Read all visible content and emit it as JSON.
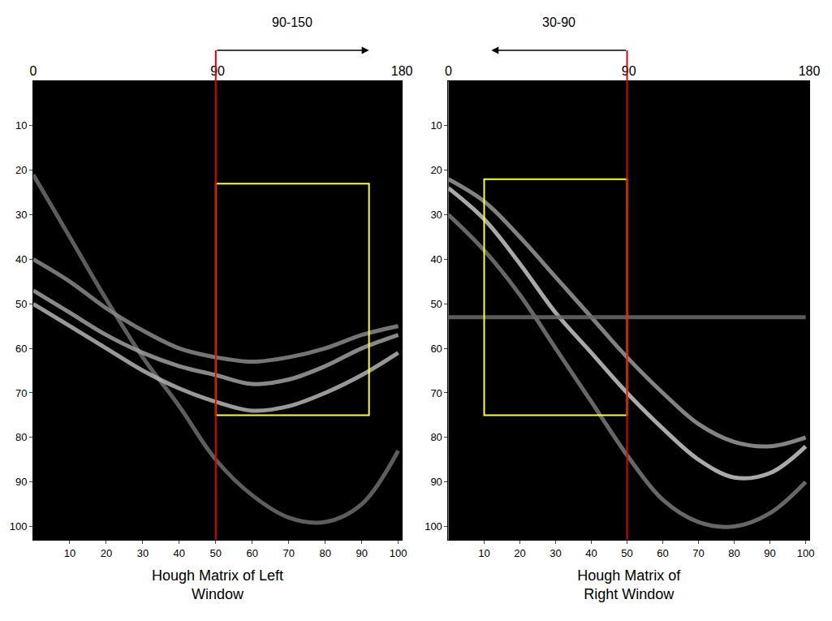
{
  "chart_data": [
    {
      "type": "line",
      "title": "Hough Matrix of Left Window",
      "x": [
        0,
        10,
        20,
        30,
        40,
        50,
        60,
        70,
        80,
        90,
        100
      ],
      "series": [
        {
          "color": "#6e6e6e",
          "values": [
            21,
            35,
            49,
            62,
            73,
            85,
            93,
            98,
            99,
            95,
            83
          ]
        },
        {
          "color": "#8a8a8a",
          "values": [
            40,
            45,
            51,
            56,
            60,
            62,
            63,
            62,
            60,
            57,
            55
          ]
        },
        {
          "color": "#a0a0a0",
          "values": [
            47,
            52,
            57,
            61,
            64,
            66,
            68,
            67,
            64,
            60,
            57
          ]
        },
        {
          "color": "#b4b4b4",
          "values": [
            50,
            55,
            60,
            65,
            69,
            72,
            74,
            73,
            70,
            66,
            61
          ]
        }
      ],
      "xlim": [
        0,
        101
      ],
      "xticks": [
        10,
        20,
        30,
        40,
        50,
        60,
        70,
        80,
        90,
        100
      ],
      "ylim": [
        103,
        0
      ],
      "yticks": [
        10,
        20,
        30,
        40,
        50,
        60,
        70,
        80,
        90,
        100
      ],
      "x2lim": [
        0,
        180
      ],
      "x2ticks": [
        0,
        90,
        180
      ],
      "divider": 50,
      "highlight": {
        "x": [
          50,
          92
        ],
        "y": [
          23,
          75
        ]
      },
      "arrow": {
        "from": 50,
        "to": 92,
        "label": "90-150"
      },
      "grid": false
    },
    {
      "type": "line",
      "title": "Hough Matrix of Right Window",
      "x": [
        0,
        10,
        20,
        30,
        40,
        50,
        60,
        70,
        80,
        90,
        100
      ],
      "series": [
        {
          "color": "#9a9a9a",
          "values": [
            22,
            27,
            35,
            44,
            53,
            62,
            70,
            77,
            81,
            82,
            80
          ]
        },
        {
          "color": "#c8c8c8",
          "values": [
            24,
            31,
            41,
            52,
            61,
            70,
            78,
            85,
            89,
            88,
            82
          ]
        },
        {
          "color": "#7a7a7a",
          "values": [
            30,
            38,
            48,
            60,
            72,
            84,
            94,
            99,
            100,
            97,
            90
          ]
        },
        {
          "color": "#6a6a6a",
          "values": [
            53,
            53,
            53,
            53,
            53,
            53,
            53,
            53,
            53,
            53,
            53
          ]
        }
      ],
      "xlim": [
        0,
        101
      ],
      "xticks": [
        10,
        20,
        30,
        40,
        50,
        60,
        70,
        80,
        90,
        100
      ],
      "ylim": [
        103,
        0
      ],
      "yticks": [
        10,
        20,
        30,
        40,
        50,
        60,
        70,
        80,
        90,
        100
      ],
      "x2lim": [
        0,
        180
      ],
      "x2ticks": [
        0,
        90,
        180
      ],
      "divider": 50,
      "highlight": {
        "x": [
          10,
          50
        ],
        "y": [
          22,
          75
        ]
      },
      "arrow": {
        "from": 50,
        "to": 12,
        "label": "30-90"
      },
      "grid": false
    }
  ]
}
